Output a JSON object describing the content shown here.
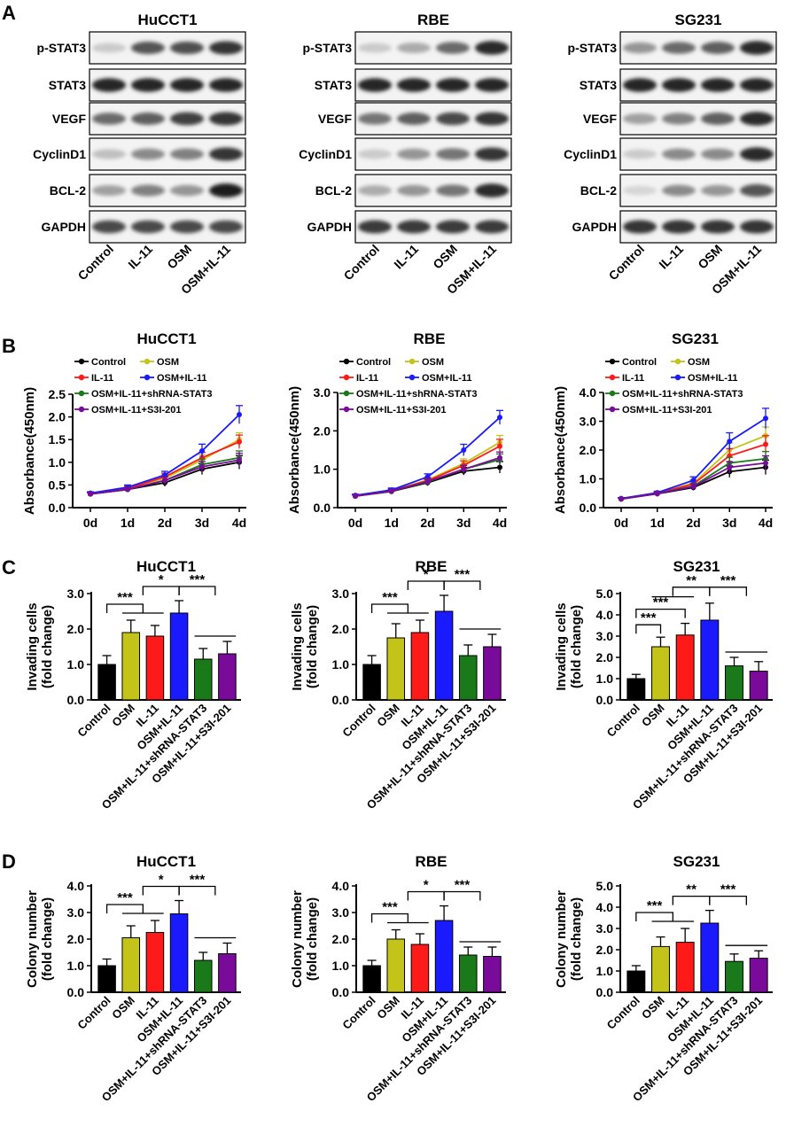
{
  "panel_letters": [
    "A",
    "B",
    "C",
    "D"
  ],
  "colors": {
    "Control": "#000000",
    "OSM": "#c3c31a",
    "IL-11": "#ff1a1a",
    "OSM+IL-11": "#1a1aff",
    "OSM+IL-11+shRNA-STAT3": "#1a7a1a",
    "OSM+IL-11+S3I-201": "#7a0a9a"
  },
  "cell_lines": [
    "HuCCT1",
    "RBE",
    "SG231"
  ],
  "western": {
    "proteins": [
      "p-STAT3",
      "STAT3",
      "VEGF",
      "CyclinD1",
      "BCL-2",
      "GAPDH"
    ],
    "lanes": [
      "Control",
      "IL-11",
      "OSM",
      "OSM+IL-11"
    ],
    "band_intensity": [
      [
        [
          0.15,
          0.7,
          0.72,
          0.85
        ],
        [
          0.92,
          0.92,
          0.92,
          0.92
        ],
        [
          0.6,
          0.65,
          0.8,
          0.85
        ],
        [
          0.2,
          0.45,
          0.5,
          0.85
        ],
        [
          0.35,
          0.5,
          0.4,
          0.95
        ],
        [
          0.75,
          0.75,
          0.75,
          0.75
        ]
      ],
      [
        [
          0.15,
          0.3,
          0.6,
          0.9
        ],
        [
          0.92,
          0.92,
          0.92,
          0.92
        ],
        [
          0.55,
          0.65,
          0.75,
          0.85
        ],
        [
          0.15,
          0.4,
          0.55,
          0.85
        ],
        [
          0.3,
          0.4,
          0.55,
          0.9
        ],
        [
          0.82,
          0.82,
          0.82,
          0.82
        ]
      ],
      [
        [
          0.4,
          0.6,
          0.65,
          0.9
        ],
        [
          0.92,
          0.92,
          0.92,
          0.92
        ],
        [
          0.35,
          0.5,
          0.65,
          0.9
        ],
        [
          0.15,
          0.45,
          0.45,
          0.9
        ],
        [
          0.1,
          0.45,
          0.4,
          0.7
        ],
        [
          0.85,
          0.85,
          0.85,
          0.85
        ]
      ]
    ]
  },
  "proliferation": {
    "ylabel": "Absorbance(450nm)",
    "days": [
      "0d",
      "1d",
      "2d",
      "3d",
      "4d"
    ],
    "legend": [
      "Control",
      "OSM",
      "IL-11",
      "OSM+IL-11",
      "OSM+IL-11+shRNA-STAT3",
      "OSM+IL-11+S3I-201"
    ]
  },
  "invasion": {
    "ylabel_line1": "Invading cells",
    "ylabel_line2": "(fold change)",
    "groups": [
      "Control",
      "OSM",
      "IL-11",
      "OSM+IL-11",
      "OSM+IL-11+shRNA-STAT3",
      "OSM+IL-11+S3I-201"
    ]
  },
  "colony": {
    "ylabel_line1": "Colony number",
    "ylabel_line2": "(fold change)",
    "groups": [
      "Control",
      "OSM",
      "IL-11",
      "OSM+IL-11",
      "OSM+IL-11+shRNA-STAT3",
      "OSM+IL-11+S3I-201"
    ]
  },
  "chart_data": [
    {
      "type": "line",
      "panel": "B",
      "title": "HuCCT1",
      "ylabel": "Absorbance(450nm)",
      "x": [
        "0d",
        "1d",
        "2d",
        "3d",
        "4d"
      ],
      "ylim": [
        0,
        2.5
      ],
      "yticks": [
        0.0,
        0.5,
        1.0,
        1.5,
        2.0,
        2.5
      ],
      "series": [
        {
          "name": "Control",
          "values": [
            0.3,
            0.4,
            0.55,
            0.85,
            1.0
          ],
          "err": [
            0.03,
            0.05,
            0.08,
            0.12,
            0.15
          ]
        },
        {
          "name": "OSM",
          "values": [
            0.3,
            0.42,
            0.65,
            1.05,
            1.5
          ],
          "err": [
            0.03,
            0.05,
            0.08,
            0.12,
            0.15
          ]
        },
        {
          "name": "IL-11",
          "values": [
            0.3,
            0.42,
            0.68,
            1.1,
            1.45
          ],
          "err": [
            0.03,
            0.05,
            0.08,
            0.12,
            0.15
          ]
        },
        {
          "name": "OSM+IL-11",
          "values": [
            0.32,
            0.45,
            0.72,
            1.25,
            2.05
          ],
          "err": [
            0.03,
            0.05,
            0.08,
            0.15,
            0.2
          ]
        },
        {
          "name": "OSM+IL-11+shRNA-STAT3",
          "values": [
            0.3,
            0.4,
            0.6,
            0.95,
            1.1
          ],
          "err": [
            0.03,
            0.05,
            0.08,
            0.12,
            0.15
          ]
        },
        {
          "name": "OSM+IL-11+S3I-201",
          "values": [
            0.3,
            0.4,
            0.6,
            0.9,
            1.05
          ],
          "err": [
            0.03,
            0.05,
            0.08,
            0.12,
            0.15
          ]
        }
      ]
    },
    {
      "type": "line",
      "panel": "B",
      "title": "RBE",
      "ylabel": "Absorbance(450nm)",
      "x": [
        "0d",
        "1d",
        "2d",
        "3d",
        "4d"
      ],
      "ylim": [
        0,
        3.0
      ],
      "yticks": [
        0.0,
        1.0,
        2.0,
        3.0
      ],
      "series": [
        {
          "name": "Control",
          "values": [
            0.3,
            0.42,
            0.65,
            0.95,
            1.05
          ],
          "err": [
            0.03,
            0.05,
            0.08,
            0.1,
            0.15
          ]
        },
        {
          "name": "OSM",
          "values": [
            0.3,
            0.44,
            0.72,
            1.15,
            1.7
          ],
          "err": [
            0.03,
            0.05,
            0.08,
            0.12,
            0.18
          ]
        },
        {
          "name": "IL-11",
          "values": [
            0.3,
            0.44,
            0.7,
            1.1,
            1.6
          ],
          "err": [
            0.03,
            0.05,
            0.08,
            0.12,
            0.18
          ]
        },
        {
          "name": "OSM+IL-11",
          "values": [
            0.32,
            0.46,
            0.8,
            1.5,
            2.35
          ],
          "err": [
            0.03,
            0.05,
            0.08,
            0.15,
            0.18
          ]
        },
        {
          "name": "OSM+IL-11+shRNA-STAT3",
          "values": [
            0.3,
            0.43,
            0.67,
            1.0,
            1.25
          ],
          "err": [
            0.03,
            0.05,
            0.08,
            0.1,
            0.15
          ]
        },
        {
          "name": "OSM+IL-11+S3I-201",
          "values": [
            0.3,
            0.43,
            0.68,
            1.0,
            1.3
          ],
          "err": [
            0.03,
            0.05,
            0.08,
            0.1,
            0.15
          ]
        }
      ]
    },
    {
      "type": "line",
      "panel": "B",
      "title": "SG231",
      "ylabel": "Absorbance(450nm)",
      "x": [
        "0d",
        "1d",
        "2d",
        "3d",
        "4d"
      ],
      "ylim": [
        0,
        4.0
      ],
      "yticks": [
        0.0,
        1.0,
        2.0,
        3.0,
        4.0
      ],
      "series": [
        {
          "name": "Control",
          "values": [
            0.3,
            0.48,
            0.7,
            1.25,
            1.4
          ],
          "err": [
            0.03,
            0.05,
            0.1,
            0.2,
            0.25
          ]
        },
        {
          "name": "OSM",
          "values": [
            0.3,
            0.5,
            0.85,
            2.0,
            2.5
          ],
          "err": [
            0.03,
            0.05,
            0.12,
            0.25,
            0.3
          ]
        },
        {
          "name": "IL-11",
          "values": [
            0.3,
            0.5,
            0.82,
            1.8,
            2.2
          ],
          "err": [
            0.03,
            0.05,
            0.12,
            0.25,
            0.3
          ]
        },
        {
          "name": "OSM+IL-11",
          "values": [
            0.32,
            0.52,
            0.95,
            2.3,
            3.1
          ],
          "err": [
            0.03,
            0.05,
            0.12,
            0.3,
            0.35
          ]
        },
        {
          "name": "OSM+IL-11+shRNA-STAT3",
          "values": [
            0.3,
            0.49,
            0.75,
            1.55,
            1.7
          ],
          "err": [
            0.03,
            0.05,
            0.1,
            0.2,
            0.25
          ]
        },
        {
          "name": "OSM+IL-11+S3I-201",
          "values": [
            0.3,
            0.49,
            0.73,
            1.4,
            1.55
          ],
          "err": [
            0.03,
            0.05,
            0.1,
            0.2,
            0.25
          ]
        }
      ]
    },
    {
      "type": "bar",
      "panel": "C",
      "title": "HuCCT1",
      "ylabel": "Invading cells (fold change)",
      "categories": [
        "Control",
        "OSM",
        "IL-11",
        "OSM+IL-11",
        "OSM+IL-11+shRNA-STAT3",
        "OSM+IL-11+S3I-201"
      ],
      "values": [
        1.0,
        1.9,
        1.8,
        2.45,
        1.15,
        1.3
      ],
      "err": [
        0.25,
        0.35,
        0.3,
        0.35,
        0.3,
        0.35
      ],
      "ylim": [
        0,
        3.0
      ],
      "yticks": [
        0.0,
        1.0,
        2.0,
        3.0
      ],
      "significance": [
        "***",
        "*",
        "***"
      ]
    },
    {
      "type": "bar",
      "panel": "C",
      "title": "RBE",
      "ylabel": "Invading cells (fold change)",
      "categories": [
        "Control",
        "OSM",
        "IL-11",
        "OSM+IL-11",
        "OSM+IL-11+shRNA-STAT3",
        "OSM+IL-11+S3I-201"
      ],
      "values": [
        1.0,
        1.75,
        1.9,
        2.5,
        1.25,
        1.5
      ],
      "err": [
        0.25,
        0.4,
        0.35,
        0.45,
        0.3,
        0.35
      ],
      "ylim": [
        0,
        3.0
      ],
      "yticks": [
        0.0,
        1.0,
        2.0,
        3.0
      ],
      "significance": [
        "***",
        "*",
        "***"
      ]
    },
    {
      "type": "bar",
      "panel": "C",
      "title": "SG231",
      "ylabel": "Invading cells (fold change)",
      "categories": [
        "Control",
        "OSM",
        "IL-11",
        "OSM+IL-11",
        "OSM+IL-11+shRNA-STAT3",
        "OSM+IL-11+S3I-201"
      ],
      "values": [
        1.0,
        2.5,
        3.05,
        3.75,
        1.6,
        1.35
      ],
      "err": [
        0.2,
        0.45,
        0.55,
        0.8,
        0.4,
        0.45
      ],
      "ylim": [
        0,
        5.0
      ],
      "yticks": [
        0.0,
        1.0,
        2.0,
        3.0,
        4.0,
        5.0
      ],
      "significance": [
        "***",
        "***",
        "**",
        "***"
      ]
    },
    {
      "type": "bar",
      "panel": "D",
      "title": "HuCCT1",
      "ylabel": "Colony number (fold change)",
      "categories": [
        "Control",
        "OSM",
        "IL-11",
        "OSM+IL-11",
        "OSM+IL-11+shRNA-STAT3",
        "OSM+IL-11+S3I-201"
      ],
      "values": [
        1.0,
        2.05,
        2.25,
        2.95,
        1.2,
        1.45
      ],
      "err": [
        0.25,
        0.45,
        0.45,
        0.5,
        0.3,
        0.4
      ],
      "ylim": [
        0,
        4.0
      ],
      "yticks": [
        0.0,
        1.0,
        2.0,
        3.0,
        4.0
      ],
      "significance": [
        "***",
        "*",
        "***"
      ]
    },
    {
      "type": "bar",
      "panel": "D",
      "title": "RBE",
      "ylabel": "Colony number (fold change)",
      "categories": [
        "Control",
        "OSM",
        "IL-11",
        "OSM+IL-11",
        "OSM+IL-11+shRNA-STAT3",
        "OSM+IL-11+S3I-201"
      ],
      "values": [
        1.0,
        2.0,
        1.8,
        2.7,
        1.4,
        1.35
      ],
      "err": [
        0.2,
        0.35,
        0.4,
        0.55,
        0.3,
        0.35
      ],
      "ylim": [
        0,
        4.0
      ],
      "yticks": [
        0.0,
        1.0,
        2.0,
        3.0,
        4.0
      ],
      "significance": [
        "***",
        "*",
        "***"
      ]
    },
    {
      "type": "bar",
      "panel": "D",
      "title": "SG231",
      "ylabel": "Colony number (fold change)",
      "categories": [
        "Control",
        "OSM",
        "IL-11",
        "OSM+IL-11",
        "OSM+IL-11+shRNA-STAT3",
        "OSM+IL-11+S3I-201"
      ],
      "values": [
        1.0,
        2.15,
        2.35,
        3.25,
        1.45,
        1.6
      ],
      "err": [
        0.25,
        0.45,
        0.65,
        0.6,
        0.35,
        0.35
      ],
      "ylim": [
        0,
        5.0
      ],
      "yticks": [
        0.0,
        1.0,
        2.0,
        3.0,
        4.0,
        5.0
      ],
      "significance": [
        "***",
        "**",
        "***"
      ]
    }
  ]
}
